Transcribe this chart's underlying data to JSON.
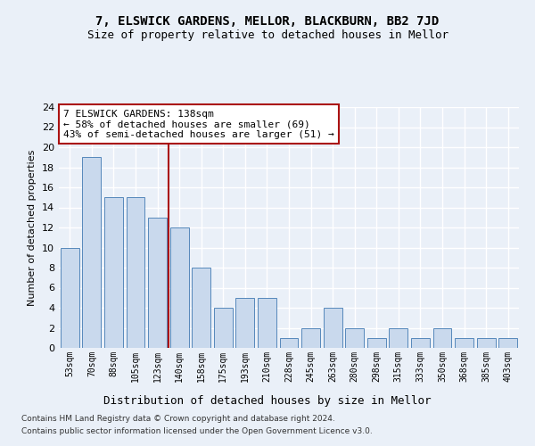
{
  "title1": "7, ELSWICK GARDENS, MELLOR, BLACKBURN, BB2 7JD",
  "title2": "Size of property relative to detached houses in Mellor",
  "xlabel": "Distribution of detached houses by size in Mellor",
  "ylabel": "Number of detached properties",
  "categories": [
    "53sqm",
    "70sqm",
    "88sqm",
    "105sqm",
    "123sqm",
    "140sqm",
    "158sqm",
    "175sqm",
    "193sqm",
    "210sqm",
    "228sqm",
    "245sqm",
    "263sqm",
    "280sqm",
    "298sqm",
    "315sqm",
    "333sqm",
    "350sqm",
    "368sqm",
    "385sqm",
    "403sqm"
  ],
  "values": [
    10,
    19,
    15,
    15,
    13,
    12,
    8,
    4,
    5,
    5,
    1,
    2,
    4,
    2,
    1,
    2,
    1,
    2,
    1,
    1,
    1
  ],
  "bar_color": "#c9d9ed",
  "bar_edge_color": "#5588bb",
  "vline_color": "#aa1111",
  "annotation_box_text": "7 ELSWICK GARDENS: 138sqm\n← 58% of detached houses are smaller (69)\n43% of semi-detached houses are larger (51) →",
  "annotation_box_color": "#ffffff",
  "annotation_box_edge_color": "#aa1111",
  "ylim": [
    0,
    24
  ],
  "yticks": [
    0,
    2,
    4,
    6,
    8,
    10,
    12,
    14,
    16,
    18,
    20,
    22,
    24
  ],
  "footer1": "Contains HM Land Registry data © Crown copyright and database right 2024.",
  "footer2": "Contains public sector information licensed under the Open Government Licence v3.0.",
  "bg_color": "#eaf0f8",
  "plot_bg_color": "#eaf0f8",
  "grid_color": "#ffffff",
  "title1_fontsize": 10,
  "title2_fontsize": 9,
  "xlabel_fontsize": 9,
  "ylabel_fontsize": 8
}
